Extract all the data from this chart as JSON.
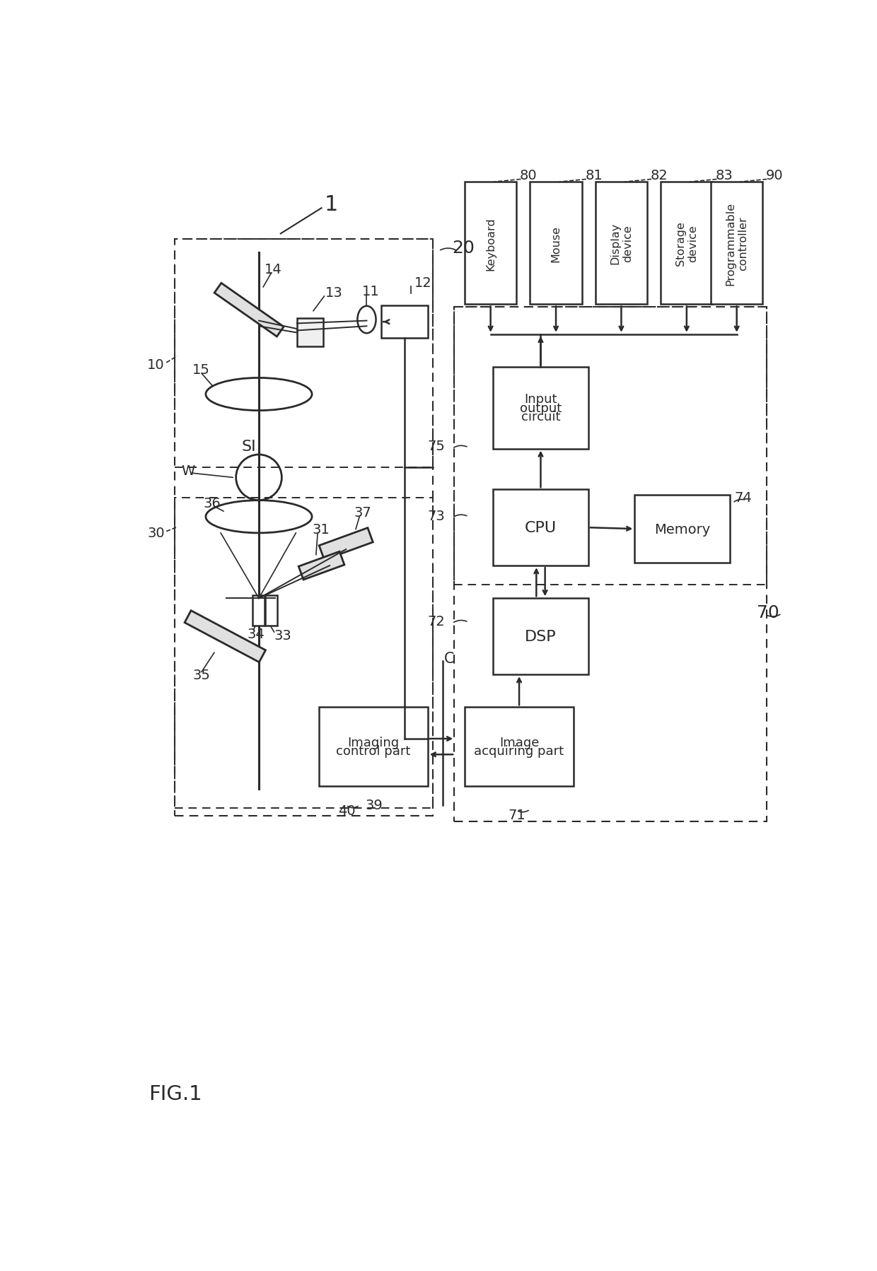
{
  "bg_color": "#ffffff",
  "line_color": "#2a2a2a",
  "figsize": [
    12.4,
    17.99
  ],
  "dpi": 100,
  "fig_label": "FIG.1",
  "system_label": "1",
  "optical_unit_label": "20",
  "detect_unit_label": "30",
  "computer_label": "70",
  "io_section_label": "75",
  "cpu_section_label": "73",
  "dsp_section_label": "72",
  "image_acq_label": "71",
  "memory_label": "74",
  "peripheral_nums": [
    "80",
    "81",
    "82",
    "83",
    "90"
  ],
  "peripheral_labels": [
    "Keyboard",
    "Mouse",
    "Display\ndevice",
    "Storage\ndevice",
    "Programmable\ncontroller"
  ],
  "c_label": "C"
}
